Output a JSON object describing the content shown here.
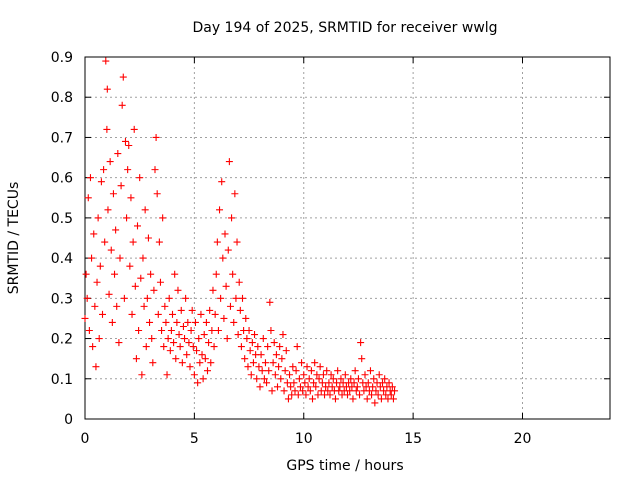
{
  "chart_data": {
    "type": "scatter",
    "title": "Day 194 of 2025, SRMTID for receiver wwlg",
    "xlabel": "GPS time / hours",
    "ylabel": "SRMTID / TECUs",
    "xlim": [
      0,
      24
    ],
    "ylim": [
      0,
      0.9
    ],
    "xticks": [
      0,
      5,
      10,
      15,
      20
    ],
    "xtick_labels": [
      "0",
      "5",
      "10",
      "15",
      "20"
    ],
    "yticks": [
      0,
      0.1,
      0.2,
      0.3,
      0.4,
      0.5,
      0.6,
      0.7,
      0.8,
      0.9
    ],
    "ytick_labels": [
      "0",
      "0.1",
      "0.2",
      "0.3",
      "0.4",
      "0.5",
      "0.6",
      "0.7",
      "0.8",
      "0.9"
    ],
    "grid": true,
    "marker": "+",
    "color": "#ff0000",
    "series": [
      {
        "name": "SRMTID",
        "points": [
          [
            0.0,
            0.25
          ],
          [
            0.05,
            0.36
          ],
          [
            0.1,
            0.3
          ],
          [
            0.15,
            0.55
          ],
          [
            0.2,
            0.22
          ],
          [
            0.25,
            0.6
          ],
          [
            0.3,
            0.4
          ],
          [
            0.35,
            0.18
          ],
          [
            0.4,
            0.46
          ],
          [
            0.45,
            0.28
          ],
          [
            0.5,
            0.13
          ],
          [
            0.55,
            0.34
          ],
          [
            0.6,
            0.5
          ],
          [
            0.65,
            0.2
          ],
          [
            0.7,
            0.38
          ],
          [
            0.75,
            0.59
          ],
          [
            0.8,
            0.26
          ],
          [
            0.85,
            0.62
          ],
          [
            0.9,
            0.44
          ],
          [
            0.95,
            0.89
          ],
          [
            1.0,
            0.72
          ],
          [
            1.02,
            0.82
          ],
          [
            1.05,
            0.52
          ],
          [
            1.1,
            0.31
          ],
          [
            1.15,
            0.64
          ],
          [
            1.2,
            0.42
          ],
          [
            1.25,
            0.24
          ],
          [
            1.3,
            0.56
          ],
          [
            1.35,
            0.36
          ],
          [
            1.4,
            0.47
          ],
          [
            1.45,
            0.28
          ],
          [
            1.5,
            0.66
          ],
          [
            1.55,
            0.19
          ],
          [
            1.6,
            0.4
          ],
          [
            1.65,
            0.58
          ],
          [
            1.7,
            0.78
          ],
          [
            1.75,
            0.85
          ],
          [
            1.8,
            0.3
          ],
          [
            1.85,
            0.69
          ],
          [
            1.9,
            0.5
          ],
          [
            1.95,
            0.62
          ],
          [
            2.0,
            0.68
          ],
          [
            2.05,
            0.38
          ],
          [
            2.1,
            0.55
          ],
          [
            2.15,
            0.26
          ],
          [
            2.2,
            0.44
          ],
          [
            2.25,
            0.72
          ],
          [
            2.3,
            0.33
          ],
          [
            2.35,
            0.15
          ],
          [
            2.4,
            0.48
          ],
          [
            2.45,
            0.22
          ],
          [
            2.5,
            0.6
          ],
          [
            2.55,
            0.35
          ],
          [
            2.6,
            0.11
          ],
          [
            2.65,
            0.4
          ],
          [
            2.7,
            0.28
          ],
          [
            2.75,
            0.52
          ],
          [
            2.8,
            0.18
          ],
          [
            2.85,
            0.3
          ],
          [
            2.9,
            0.45
          ],
          [
            2.95,
            0.24
          ],
          [
            3.0,
            0.36
          ],
          [
            3.05,
            0.2
          ],
          [
            3.1,
            0.14
          ],
          [
            3.15,
            0.32
          ],
          [
            3.2,
            0.62
          ],
          [
            3.25,
            0.7
          ],
          [
            3.3,
            0.56
          ],
          [
            3.35,
            0.26
          ],
          [
            3.4,
            0.44
          ],
          [
            3.45,
            0.34
          ],
          [
            3.5,
            0.22
          ],
          [
            3.55,
            0.5
          ],
          [
            3.6,
            0.18
          ],
          [
            3.65,
            0.28
          ],
          [
            3.7,
            0.24
          ],
          [
            3.75,
            0.11
          ],
          [
            3.8,
            0.2
          ],
          [
            3.85,
            0.3
          ],
          [
            3.9,
            0.17
          ],
          [
            3.95,
            0.22
          ],
          [
            4.0,
            0.26
          ],
          [
            4.05,
            0.19
          ],
          [
            4.1,
            0.36
          ],
          [
            4.15,
            0.15
          ],
          [
            4.2,
            0.24
          ],
          [
            4.25,
            0.32
          ],
          [
            4.3,
            0.21
          ],
          [
            4.35,
            0.18
          ],
          [
            4.4,
            0.27
          ],
          [
            4.45,
            0.14
          ],
          [
            4.5,
            0.23
          ],
          [
            4.55,
            0.2
          ],
          [
            4.6,
            0.3
          ],
          [
            4.65,
            0.16
          ],
          [
            4.7,
            0.24
          ],
          [
            4.75,
            0.19
          ],
          [
            4.8,
            0.13
          ],
          [
            4.85,
            0.22
          ],
          [
            4.9,
            0.27
          ],
          [
            4.95,
            0.18
          ],
          [
            5.0,
            0.11
          ],
          [
            5.05,
            0.24
          ],
          [
            5.1,
            0.17
          ],
          [
            5.15,
            0.09
          ],
          [
            5.2,
            0.2
          ],
          [
            5.25,
            0.14
          ],
          [
            5.3,
            0.26
          ],
          [
            5.35,
            0.16
          ],
          [
            5.4,
            0.1
          ],
          [
            5.45,
            0.21
          ],
          [
            5.5,
            0.15
          ],
          [
            5.55,
            0.24
          ],
          [
            5.6,
            0.12
          ],
          [
            5.65,
            0.19
          ],
          [
            5.7,
            0.27
          ],
          [
            5.75,
            0.14
          ],
          [
            5.8,
            0.22
          ],
          [
            5.85,
            0.32
          ],
          [
            5.9,
            0.18
          ],
          [
            5.95,
            0.26
          ],
          [
            6.0,
            0.36
          ],
          [
            6.05,
            0.44
          ],
          [
            6.1,
            0.22
          ],
          [
            6.15,
            0.52
          ],
          [
            6.2,
            0.3
          ],
          [
            6.25,
            0.59
          ],
          [
            6.3,
            0.4
          ],
          [
            6.35,
            0.25
          ],
          [
            6.4,
            0.46
          ],
          [
            6.45,
            0.33
          ],
          [
            6.5,
            0.2
          ],
          [
            6.55,
            0.42
          ],
          [
            6.6,
            0.64
          ],
          [
            6.65,
            0.28
          ],
          [
            6.7,
            0.5
          ],
          [
            6.75,
            0.36
          ],
          [
            6.8,
            0.24
          ],
          [
            6.85,
            0.56
          ],
          [
            6.9,
            0.3
          ],
          [
            6.95,
            0.44
          ],
          [
            7.0,
            0.21
          ],
          [
            7.05,
            0.34
          ],
          [
            7.1,
            0.27
          ],
          [
            7.15,
            0.18
          ],
          [
            7.2,
            0.3
          ],
          [
            7.25,
            0.22
          ],
          [
            7.3,
            0.15
          ],
          [
            7.35,
            0.25
          ],
          [
            7.4,
            0.2
          ],
          [
            7.45,
            0.13
          ],
          [
            7.5,
            0.22
          ],
          [
            7.55,
            0.17
          ],
          [
            7.6,
            0.11
          ],
          [
            7.65,
            0.19
          ],
          [
            7.7,
            0.14
          ],
          [
            7.75,
            0.21
          ],
          [
            7.8,
            0.16
          ],
          [
            7.85,
            0.1
          ],
          [
            7.9,
            0.18
          ],
          [
            7.95,
            0.13
          ],
          [
            8.0,
            0.08
          ],
          [
            8.05,
            0.16
          ],
          [
            8.1,
            0.12
          ],
          [
            8.15,
            0.2
          ],
          [
            8.2,
            0.1
          ],
          [
            8.25,
            0.14
          ],
          [
            8.3,
            0.09
          ],
          [
            8.35,
            0.18
          ],
          [
            8.4,
            0.12
          ],
          [
            8.45,
            0.29
          ],
          [
            8.5,
            0.22
          ],
          [
            8.55,
            0.07
          ],
          [
            8.6,
            0.14
          ],
          [
            8.65,
            0.19
          ],
          [
            8.7,
            0.11
          ],
          [
            8.75,
            0.16
          ],
          [
            8.8,
            0.08
          ],
          [
            8.85,
            0.13
          ],
          [
            8.9,
            0.18
          ],
          [
            8.95,
            0.1
          ],
          [
            9.0,
            0.15
          ],
          [
            9.05,
            0.21
          ],
          [
            9.1,
            0.07
          ],
          [
            9.15,
            0.12
          ],
          [
            9.2,
            0.17
          ],
          [
            9.25,
            0.09
          ],
          [
            9.3,
            0.05
          ],
          [
            9.35,
            0.11
          ],
          [
            9.4,
            0.08
          ],
          [
            9.45,
            0.06
          ],
          [
            9.5,
            0.13
          ],
          [
            9.55,
            0.09
          ],
          [
            9.6,
            0.07
          ],
          [
            9.65,
            0.12
          ],
          [
            9.7,
            0.18
          ],
          [
            9.75,
            0.06
          ],
          [
            9.8,
            0.1
          ],
          [
            9.85,
            0.08
          ],
          [
            9.9,
            0.14
          ],
          [
            9.95,
            0.07
          ],
          [
            10.0,
            0.11
          ],
          [
            10.05,
            0.09
          ],
          [
            10.1,
            0.06
          ],
          [
            10.15,
            0.13
          ],
          [
            10.2,
            0.08
          ],
          [
            10.25,
            0.1
          ],
          [
            10.3,
            0.07
          ],
          [
            10.35,
            0.12
          ],
          [
            10.4,
            0.05
          ],
          [
            10.45,
            0.09
          ],
          [
            10.5,
            0.14
          ],
          [
            10.55,
            0.08
          ],
          [
            10.6,
            0.11
          ],
          [
            10.65,
            0.06
          ],
          [
            10.7,
            0.1
          ],
          [
            10.75,
            0.13
          ],
          [
            10.8,
            0.07
          ],
          [
            10.85,
            0.09
          ],
          [
            10.9,
            0.11
          ],
          [
            10.95,
            0.06
          ],
          [
            11.0,
            0.08
          ],
          [
            11.05,
            0.12
          ],
          [
            11.1,
            0.07
          ],
          [
            11.15,
            0.09
          ],
          [
            11.2,
            0.06
          ],
          [
            11.25,
            0.11
          ],
          [
            11.3,
            0.08
          ],
          [
            11.35,
            0.1
          ],
          [
            11.4,
            0.07
          ],
          [
            11.45,
            0.05
          ],
          [
            11.5,
            0.09
          ],
          [
            11.55,
            0.12
          ],
          [
            11.6,
            0.07
          ],
          [
            11.65,
            0.08
          ],
          [
            11.7,
            0.1
          ],
          [
            11.75,
            0.06
          ],
          [
            11.8,
            0.09
          ],
          [
            11.85,
            0.07
          ],
          [
            11.9,
            0.11
          ],
          [
            11.95,
            0.08
          ],
          [
            12.0,
            0.06
          ],
          [
            12.05,
            0.09
          ],
          [
            12.1,
            0.07
          ],
          [
            12.15,
            0.1
          ],
          [
            12.2,
            0.08
          ],
          [
            12.25,
            0.05
          ],
          [
            12.3,
            0.09
          ],
          [
            12.35,
            0.12
          ],
          [
            12.4,
            0.07
          ],
          [
            12.45,
            0.08
          ],
          [
            12.5,
            0.1
          ],
          [
            12.55,
            0.06
          ],
          [
            12.6,
            0.19
          ],
          [
            12.65,
            0.15
          ],
          [
            12.7,
            0.09
          ],
          [
            12.75,
            0.07
          ],
          [
            12.8,
            0.11
          ],
          [
            12.85,
            0.08
          ],
          [
            12.9,
            0.05
          ],
          [
            12.95,
            0.09
          ],
          [
            13.0,
            0.07
          ],
          [
            13.05,
            0.12
          ],
          [
            13.1,
            0.06
          ],
          [
            13.15,
            0.08
          ],
          [
            13.2,
            0.1
          ],
          [
            13.25,
            0.04
          ],
          [
            13.3,
            0.07
          ],
          [
            13.35,
            0.09
          ],
          [
            13.4,
            0.06
          ],
          [
            13.45,
            0.11
          ],
          [
            13.5,
            0.08
          ],
          [
            13.55,
            0.05
          ],
          [
            13.6,
            0.09
          ],
          [
            13.65,
            0.07
          ],
          [
            13.7,
            0.1
          ],
          [
            13.75,
            0.06
          ],
          [
            13.8,
            0.08
          ],
          [
            13.85,
            0.05
          ],
          [
            13.9,
            0.09
          ],
          [
            13.95,
            0.07
          ],
          [
            14.0,
            0.06
          ],
          [
            14.05,
            0.08
          ],
          [
            14.1,
            0.05
          ],
          [
            14.15,
            0.07
          ]
        ]
      }
    ]
  }
}
